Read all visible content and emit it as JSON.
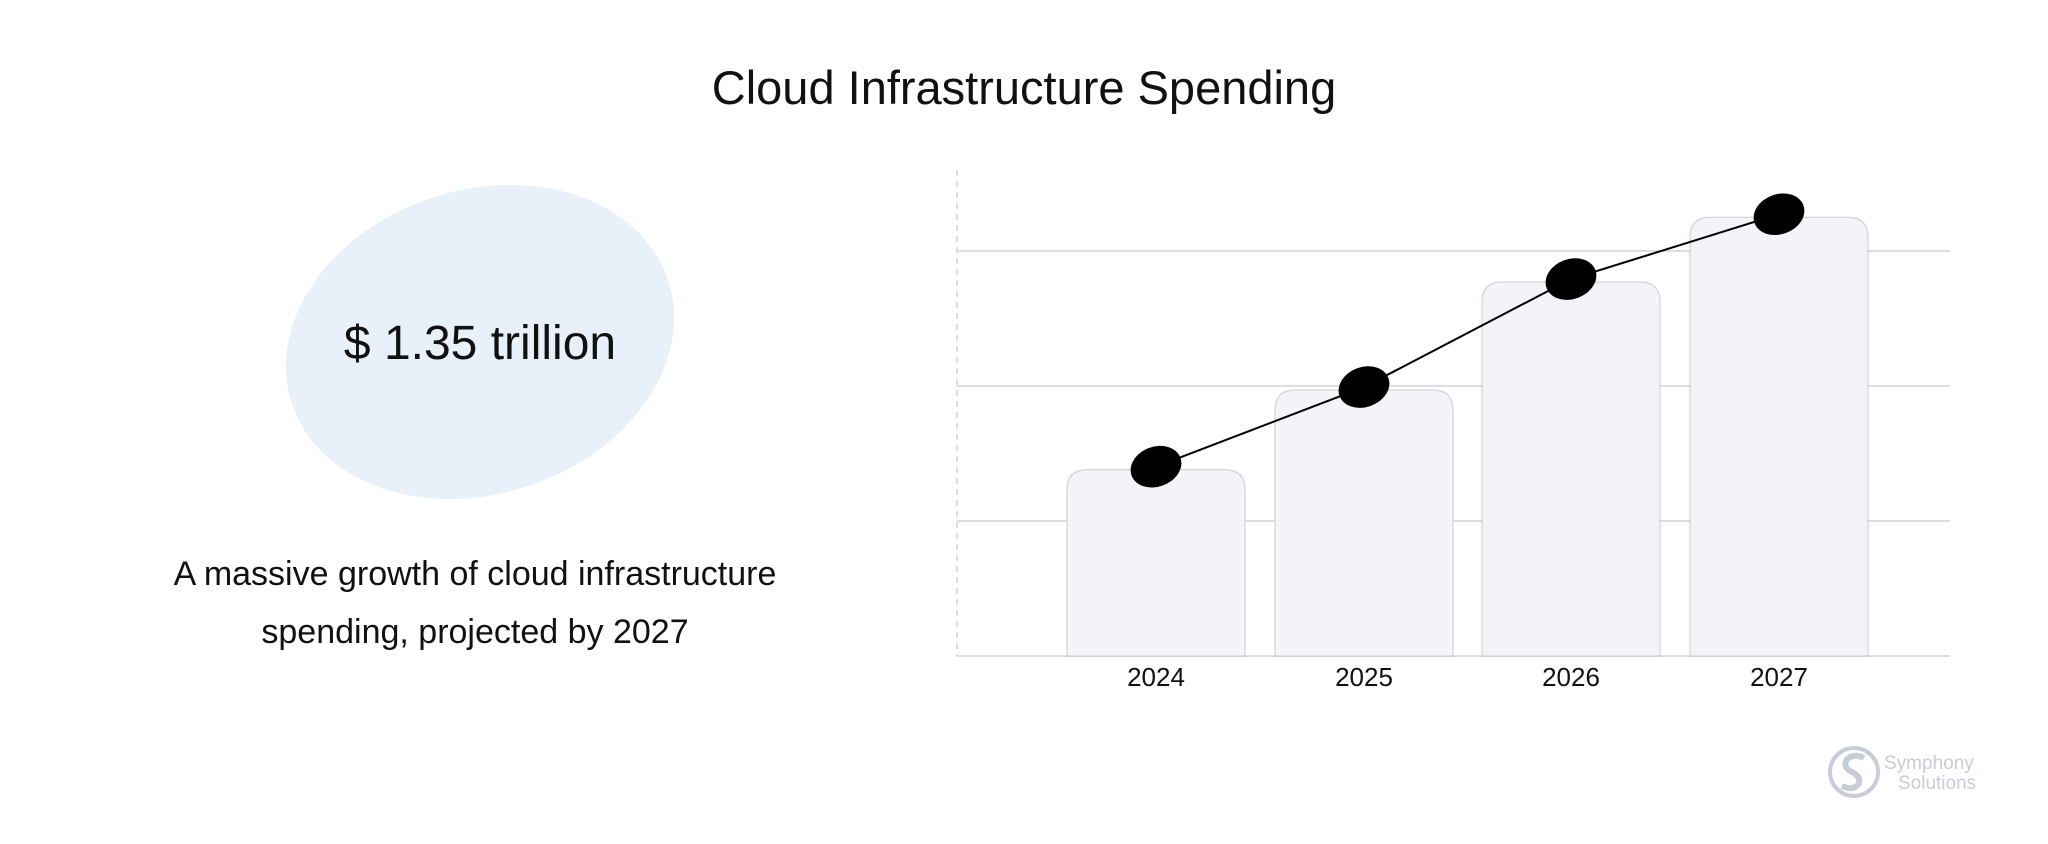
{
  "title": "Cloud Infrastructure Spending",
  "stat": {
    "value": "$ 1.35 trillion",
    "blob_color": "#e8f0f9"
  },
  "description": {
    "line1": "A massive growth of cloud infrastructure",
    "line2": "spending, projected by 2027"
  },
  "logo": {
    "text1": "Symphony",
    "text2": "Solutions",
    "color": "#c8ccd8"
  },
  "chart_data": {
    "type": "bar",
    "categories": [
      "2024",
      "2025",
      "2026",
      "2027"
    ],
    "values": [
      1.38,
      1.97,
      2.77,
      3.25
    ],
    "overlay_line": true,
    "ylim": [
      0,
      3.6
    ],
    "grid": true,
    "y_tick_labels_shown": false,
    "bar_fill": "#f3f4f8",
    "bar_stroke": "#c9cbd6",
    "marker_color": "#000000",
    "line_color": "#000000",
    "gridline_color": "#dcdde2"
  }
}
